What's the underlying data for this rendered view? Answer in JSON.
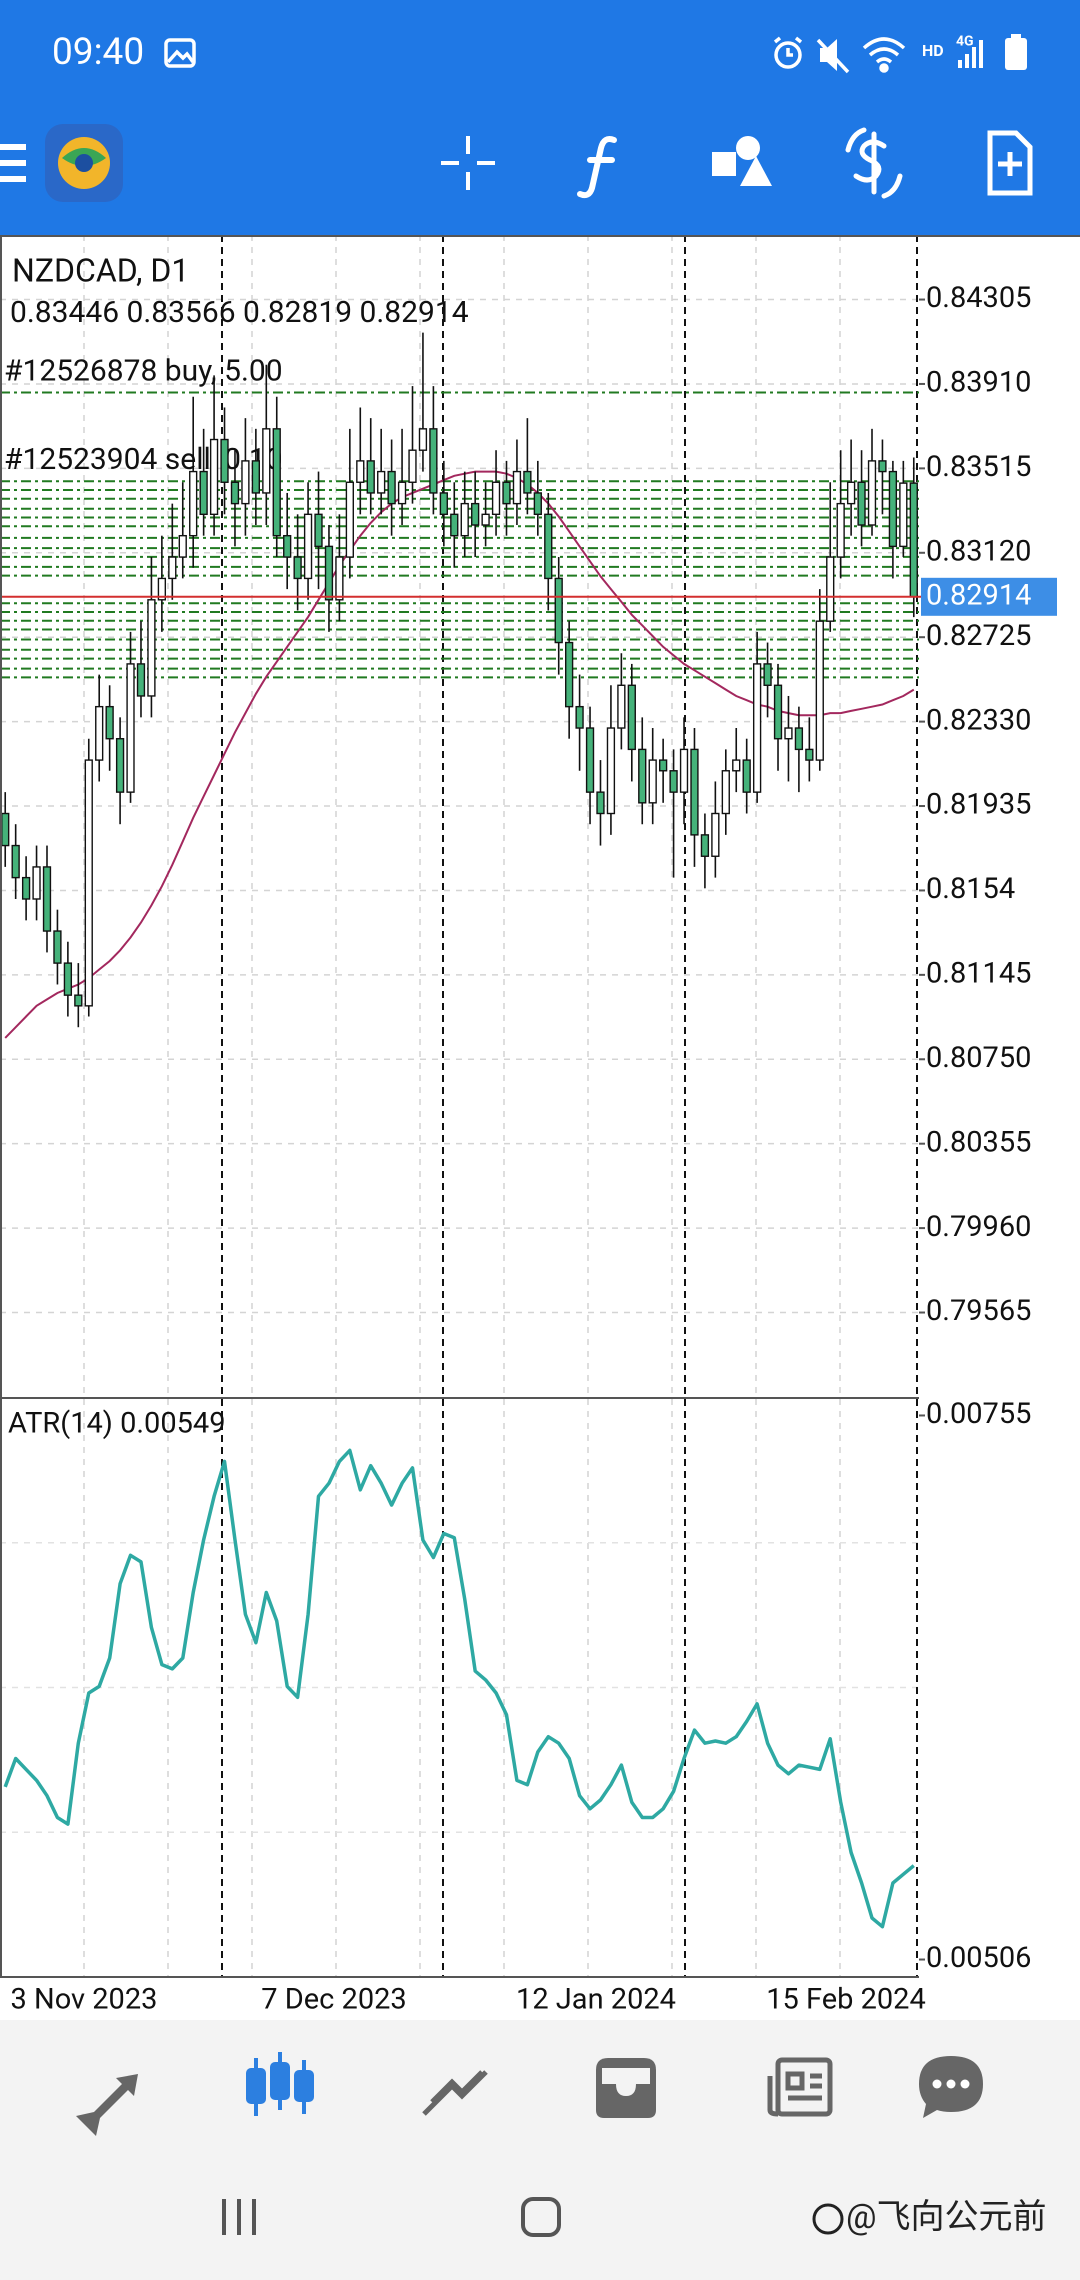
{
  "status_bar": {
    "time": "09:40",
    "network_hd": "HD",
    "network_4g": "4G"
  },
  "chart_data": {
    "type": "candlestick",
    "symbol_title": "NZDCAD, D1",
    "ohlc_text": "0.83446 0.83566 0.82819 0.82914",
    "up_color": "#ffffff",
    "down_color": "#45b27a",
    "candles": [
      [
        0.819,
        0.82,
        0.8165,
        0.8175
      ],
      [
        0.8175,
        0.8185,
        0.815,
        0.816
      ],
      [
        0.816,
        0.817,
        0.814,
        0.815
      ],
      [
        0.815,
        0.8175,
        0.814,
        0.8165
      ],
      [
        0.8165,
        0.8175,
        0.8125,
        0.8135
      ],
      [
        0.8135,
        0.8145,
        0.811,
        0.812
      ],
      [
        0.812,
        0.813,
        0.8095,
        0.8105
      ],
      [
        0.8105,
        0.812,
        0.809,
        0.81
      ],
      [
        0.81,
        0.8225,
        0.8095,
        0.8215
      ],
      [
        0.8215,
        0.8255,
        0.8205,
        0.824
      ],
      [
        0.824,
        0.825,
        0.821,
        0.8225
      ],
      [
        0.8225,
        0.8235,
        0.8185,
        0.82
      ],
      [
        0.82,
        0.8275,
        0.8195,
        0.826
      ],
      [
        0.826,
        0.828,
        0.8235,
        0.8245
      ],
      [
        0.8245,
        0.831,
        0.8235,
        0.829
      ],
      [
        0.829,
        0.832,
        0.8275,
        0.83
      ],
      [
        0.83,
        0.8335,
        0.829,
        0.831
      ],
      [
        0.831,
        0.8345,
        0.83,
        0.832
      ],
      [
        0.832,
        0.8385,
        0.8305,
        0.835
      ],
      [
        0.835,
        0.837,
        0.832,
        0.833
      ],
      [
        0.833,
        0.8395,
        0.832,
        0.8365
      ],
      [
        0.8365,
        0.838,
        0.833,
        0.8345
      ],
      [
        0.8345,
        0.836,
        0.8315,
        0.8335
      ],
      [
        0.8335,
        0.8375,
        0.832,
        0.8355
      ],
      [
        0.8355,
        0.837,
        0.8325,
        0.834
      ],
      [
        0.834,
        0.84,
        0.8325,
        0.837
      ],
      [
        0.837,
        0.8385,
        0.831,
        0.832
      ],
      [
        0.832,
        0.834,
        0.8295,
        0.831
      ],
      [
        0.831,
        0.833,
        0.8285,
        0.83
      ],
      [
        0.83,
        0.8345,
        0.829,
        0.833
      ],
      [
        0.833,
        0.835,
        0.8295,
        0.8315
      ],
      [
        0.8315,
        0.8325,
        0.8275,
        0.829
      ],
      [
        0.829,
        0.833,
        0.828,
        0.831
      ],
      [
        0.831,
        0.837,
        0.83,
        0.8345
      ],
      [
        0.8345,
        0.838,
        0.833,
        0.8355
      ],
      [
        0.8355,
        0.8375,
        0.833,
        0.834
      ],
      [
        0.834,
        0.837,
        0.833,
        0.835
      ],
      [
        0.835,
        0.8365,
        0.832,
        0.8335
      ],
      [
        0.8335,
        0.837,
        0.8325,
        0.8345
      ],
      [
        0.8345,
        0.839,
        0.8335,
        0.836
      ],
      [
        0.836,
        0.8415,
        0.835,
        0.837
      ],
      [
        0.837,
        0.839,
        0.833,
        0.834
      ],
      [
        0.834,
        0.8355,
        0.8315,
        0.833
      ],
      [
        0.833,
        0.8345,
        0.8305,
        0.832
      ],
      [
        0.832,
        0.835,
        0.831,
        0.8335
      ],
      [
        0.8335,
        0.835,
        0.831,
        0.8325
      ],
      [
        0.8325,
        0.8345,
        0.8315,
        0.833
      ],
      [
        0.833,
        0.836,
        0.832,
        0.8345
      ],
      [
        0.8345,
        0.8355,
        0.832,
        0.8335
      ],
      [
        0.8335,
        0.8365,
        0.8325,
        0.835
      ],
      [
        0.835,
        0.8375,
        0.833,
        0.834
      ],
      [
        0.834,
        0.8355,
        0.832,
        0.833
      ],
      [
        0.833,
        0.834,
        0.8285,
        0.83
      ],
      [
        0.83,
        0.831,
        0.8255,
        0.827
      ],
      [
        0.827,
        0.828,
        0.8225,
        0.824
      ],
      [
        0.824,
        0.8255,
        0.821,
        0.823
      ],
      [
        0.823,
        0.824,
        0.8185,
        0.82
      ],
      [
        0.82,
        0.8215,
        0.8175,
        0.819
      ],
      [
        0.819,
        0.825,
        0.818,
        0.823
      ],
      [
        0.823,
        0.8265,
        0.822,
        0.825
      ],
      [
        0.825,
        0.826,
        0.8205,
        0.822
      ],
      [
        0.822,
        0.8235,
        0.8185,
        0.8195
      ],
      [
        0.8195,
        0.823,
        0.8185,
        0.8215
      ],
      [
        0.8215,
        0.8225,
        0.8195,
        0.821
      ],
      [
        0.821,
        0.822,
        0.816,
        0.82
      ],
      [
        0.82,
        0.8235,
        0.8185,
        0.822
      ],
      [
        0.822,
        0.823,
        0.8165,
        0.818
      ],
      [
        0.818,
        0.819,
        0.8155,
        0.817
      ],
      [
        0.817,
        0.8205,
        0.816,
        0.819
      ],
      [
        0.819,
        0.822,
        0.818,
        0.821
      ],
      [
        0.821,
        0.823,
        0.82,
        0.8215
      ],
      [
        0.8215,
        0.8225,
        0.819,
        0.82
      ],
      [
        0.82,
        0.8275,
        0.8195,
        0.826
      ],
      [
        0.826,
        0.827,
        0.8235,
        0.825
      ],
      [
        0.825,
        0.826,
        0.821,
        0.8225
      ],
      [
        0.8225,
        0.8245,
        0.8205,
        0.823
      ],
      [
        0.823,
        0.824,
        0.82,
        0.822
      ],
      [
        0.822,
        0.8235,
        0.8205,
        0.8215
      ],
      [
        0.8215,
        0.8295,
        0.821,
        0.828
      ],
      [
        0.828,
        0.8345,
        0.8275,
        0.831
      ],
      [
        0.831,
        0.836,
        0.83,
        0.8335
      ],
      [
        0.8335,
        0.8365,
        0.832,
        0.8345
      ],
      [
        0.8345,
        0.836,
        0.8315,
        0.8325
      ],
      [
        0.8325,
        0.837,
        0.832,
        0.8355
      ],
      [
        0.8355,
        0.8365,
        0.833,
        0.835
      ],
      [
        0.835,
        0.8355,
        0.83,
        0.8315
      ],
      [
        0.8315,
        0.8355,
        0.831,
        0.83446
      ],
      [
        0.83446,
        0.83566,
        0.82819,
        0.82914
      ]
    ],
    "moving_average_color": "#a3285e",
    "moving_average": [
      0.8085,
      0.809,
      0.8095,
      0.81,
      0.8103,
      0.8106,
      0.8108,
      0.811,
      0.8113,
      0.8117,
      0.8121,
      0.8126,
      0.8132,
      0.8139,
      0.8147,
      0.8156,
      0.8166,
      0.8177,
      0.8188,
      0.8198,
      0.8208,
      0.8218,
      0.8228,
      0.8237,
      0.8246,
      0.8254,
      0.8261,
      0.8268,
      0.8275,
      0.8282,
      0.829,
      0.8298,
      0.8306,
      0.8313,
      0.832,
      0.8326,
      0.8331,
      0.8335,
      0.8338,
      0.834,
      0.8342,
      0.8344,
      0.8346,
      0.8348,
      0.8349,
      0.835,
      0.835,
      0.835,
      0.8349,
      0.8347,
      0.8344,
      0.834,
      0.8335,
      0.8329,
      0.8322,
      0.8315,
      0.8308,
      0.8301,
      0.8295,
      0.8289,
      0.8283,
      0.8278,
      0.8273,
      0.8268,
      0.8264,
      0.826,
      0.8257,
      0.8254,
      0.8251,
      0.8248,
      0.8245,
      0.8243,
      0.8241,
      0.824,
      0.8238,
      0.8237,
      0.8236,
      0.8236,
      0.8236,
      0.8237,
      0.8237,
      0.8238,
      0.8239,
      0.824,
      0.8241,
      0.8243,
      0.8245,
      0.8248
    ],
    "ylim": [
      0.79165,
      0.84607
    ],
    "yticks": [
      0.84305,
      {
        "value": 0.8391,
        "label": "0.83910"
      },
      0.83515,
      {
        "value": 0.8312,
        "label": "0.83120"
      },
      0.82725,
      {
        "value": 0.8233,
        "label": "0.82330"
      },
      0.81935,
      0.8154,
      0.81145,
      {
        "value": 0.8075,
        "label": "0.80750"
      },
      0.80355,
      {
        "value": 0.7996,
        "label": "0.79960"
      },
      0.79565
    ],
    "current_price": 0.82914,
    "current_price_color": "#d32f2f",
    "order_color": "#217a21",
    "orders": [
      {
        "label": "#12526878 buy, 5.00",
        "price": 0.8387
      },
      {
        "label": "#12523904 sell, 0.10",
        "price": 0.83455
      }
    ],
    "order_levels": [
      0.83414,
      0.83373,
      0.83326,
      0.83285,
      0.83244,
      0.8319,
      0.83142,
      0.83101,
      0.83054,
      0.83013,
      0.82884,
      0.82843,
      0.82802,
      0.82761,
      0.82714,
      0.82666,
      0.82625,
      0.82578,
      0.82537
    ],
    "x_labels": [
      "3 Nov 2023",
      "7 Dec 2023",
      "12 Jan 2024",
      "15 Feb 2024"
    ],
    "indicator": {
      "label": "ATR(14) 0.00549",
      "color": "#2ea9a3",
      "ylim": [
        0.00498,
        0.00763
      ],
      "yticks": [
        0.00755,
        0.00506
      ],
      "values": [
        0.00585,
        0.00598,
        0.00593,
        0.00588,
        0.00581,
        0.00571,
        0.00568,
        0.00605,
        0.00628,
        0.00631,
        0.00644,
        0.00678,
        0.00691,
        0.00688,
        0.00658,
        0.00641,
        0.00639,
        0.00644,
        0.00674,
        0.00698,
        0.00718,
        0.00734,
        0.00698,
        0.00664,
        0.00651,
        0.00674,
        0.00661,
        0.00631,
        0.00626,
        0.00664,
        0.00718,
        0.00724,
        0.00734,
        0.00739,
        0.00721,
        0.00732,
        0.00724,
        0.00714,
        0.00724,
        0.00731,
        0.00698,
        0.0069,
        0.00701,
        0.00699,
        0.00671,
        0.00638,
        0.00634,
        0.00628,
        0.00618,
        0.00588,
        0.00586,
        0.00601,
        0.00608,
        0.00605,
        0.00598,
        0.00581,
        0.00575,
        0.00579,
        0.00586,
        0.00595,
        0.00578,
        0.00571,
        0.00571,
        0.00575,
        0.00583,
        0.00598,
        0.00611,
        0.00605,
        0.00606,
        0.00605,
        0.00608,
        0.00615,
        0.00623,
        0.00605,
        0.00595,
        0.00591,
        0.00595,
        0.00594,
        0.00593,
        0.00607,
        0.00578,
        0.00555,
        0.00541,
        0.00525,
        0.00521,
        0.00541,
        0.00545,
        0.00549
      ]
    }
  },
  "bottom_nav": {
    "watermark": "@飞向公元前"
  }
}
